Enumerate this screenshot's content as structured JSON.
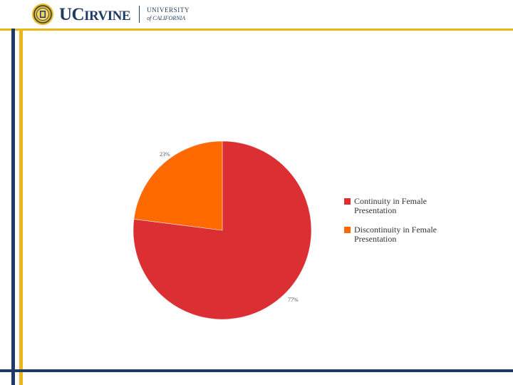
{
  "header": {
    "logo_main": "UC",
    "logo_sub": "IRVINE",
    "university_line1": "UNIVERSITY",
    "university_line2": "of CALIFORNIA"
  },
  "colors": {
    "navy": "#1f3a64",
    "gold": "#e9b71b",
    "series_continuity": "#dc2f34",
    "series_discontinuity": "#ff6a00"
  },
  "chart_data": {
    "type": "pie",
    "title": "",
    "slices": [
      {
        "name": "Continuity in Female Presentation",
        "value": 77,
        "label": "77%",
        "color": "#dc2f34"
      },
      {
        "name": "Discontinuity in Female Presentation",
        "value": 23,
        "label": "23%",
        "color": "#ff6a00"
      }
    ],
    "legend": {
      "placement": "right",
      "entries": [
        "Continuity in Female Presentation",
        "Discontinuity in Female Presentation"
      ]
    }
  }
}
